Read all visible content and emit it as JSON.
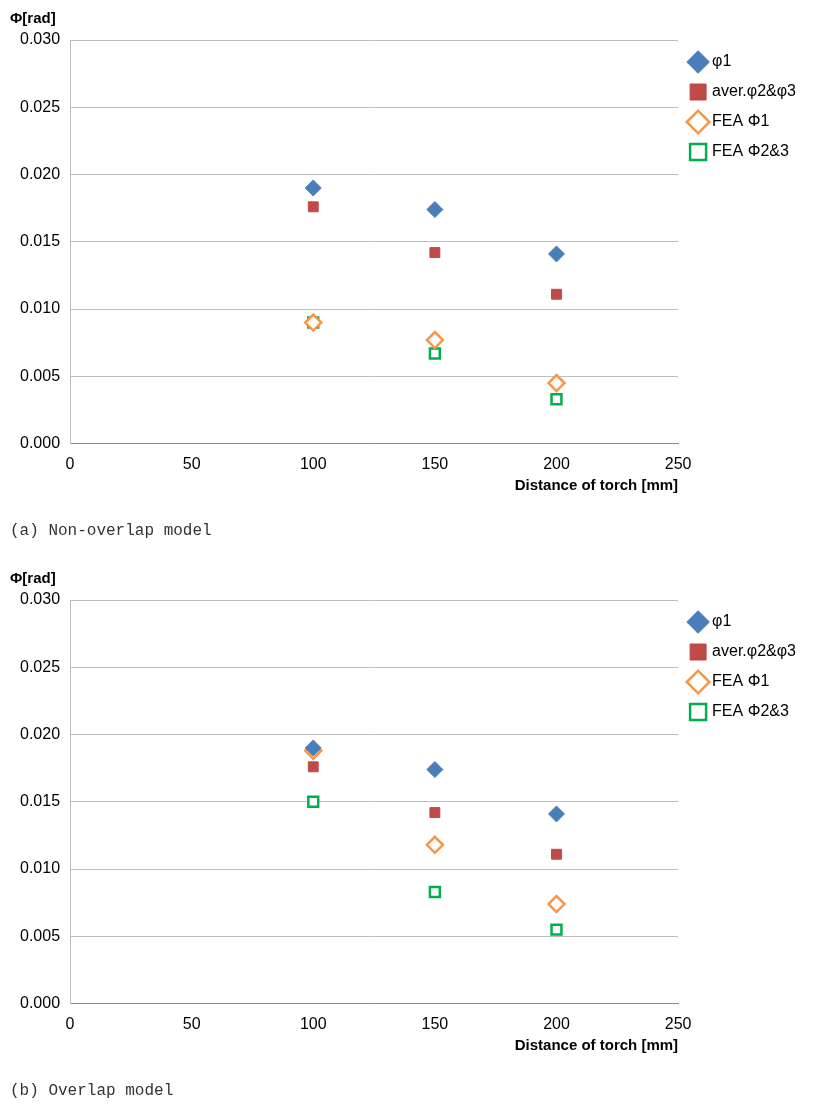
{
  "chart_data": [
    {
      "type": "scatter",
      "title": "(a) Non-overlap model",
      "x_label": "Distance of torch [mm]",
      "y_label": "Φ[rad]",
      "x": [
        100,
        150,
        200
      ],
      "series": [
        {
          "name": "φ1",
          "color": "#4a7ebb",
          "marker": "diamond",
          "values": [
            0.019,
            0.0174,
            0.0141
          ]
        },
        {
          "name": "aver.φ2&φ3",
          "color": "#be4b48",
          "marker": "square",
          "values": [
            0.0176,
            0.0142,
            0.0111
          ]
        },
        {
          "name": "FEA Φ1",
          "color": "#f79646",
          "marker": "open_diamond",
          "values": [
            0.009,
            0.0077,
            0.0045
          ]
        },
        {
          "name": "FEA Φ2&3",
          "color": "#00b050",
          "marker": "open_square",
          "values": [
            0.009,
            0.0067,
            0.0033
          ]
        }
      ],
      "xlim": [
        0,
        250
      ],
      "xticks": [
        0,
        50,
        100,
        150,
        200,
        250
      ],
      "ylim": [
        0,
        0.03
      ],
      "yticks": [
        {
          "value": 0,
          "label": "0.000"
        },
        {
          "value": 0.005,
          "label": "0.005"
        },
        {
          "value": 0.01,
          "label": "0.010"
        },
        {
          "value": 0.015,
          "label": "0.015"
        },
        {
          "value": 0.02,
          "label": "0.020"
        },
        {
          "value": 0.025,
          "label": "0.025"
        },
        {
          "value": 0.03,
          "label": "0.030"
        }
      ],
      "grid": true,
      "legend": "upper right"
    },
    {
      "type": "scatter",
      "title": "(b) Overlap model",
      "x_label": "Distance of torch [mm]",
      "y_label": "Φ[rad]",
      "x": [
        100,
        150,
        200
      ],
      "series": [
        {
          "name": "φ1",
          "color": "#4a7ebb",
          "marker": "diamond",
          "values": [
            0.019,
            0.0174,
            0.0141
          ]
        },
        {
          "name": "aver.φ2&φ3",
          "color": "#be4b48",
          "marker": "square",
          "values": [
            0.0176,
            0.0142,
            0.0111
          ]
        },
        {
          "name": "FEA Φ1",
          "color": "#f79646",
          "marker": "open_diamond",
          "values": [
            0.0188,
            0.0118,
            0.0074
          ]
        },
        {
          "name": "FEA Φ2&3",
          "color": "#00b050",
          "marker": "open_square",
          "values": [
            0.015,
            0.0083,
            0.0055
          ]
        }
      ],
      "xlim": [
        0,
        250
      ],
      "xticks": [
        0,
        50,
        100,
        150,
        200,
        250
      ],
      "ylim": [
        0,
        0.03
      ],
      "yticks": [
        {
          "value": 0,
          "label": "0.000"
        },
        {
          "value": 0.005,
          "label": "0.005"
        },
        {
          "value": 0.01,
          "label": "0.010"
        },
        {
          "value": 0.015,
          "label": "0.015"
        },
        {
          "value": 0.02,
          "label": "0.020"
        },
        {
          "value": 0.025,
          "label": "0.025"
        },
        {
          "value": 0.03,
          "label": "0.030"
        }
      ],
      "grid": true,
      "legend": "upper right"
    }
  ]
}
